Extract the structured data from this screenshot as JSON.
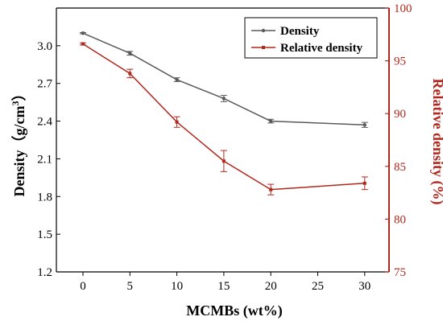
{
  "colors": {
    "density": "#5a5a5a",
    "relative": "#b0281d",
    "axis": "#000000"
  },
  "chart_data": {
    "type": "line",
    "categories": [
      "0",
      "5",
      "10",
      "15",
      "20",
      "25",
      "30"
    ],
    "xlabel": "MCMBs (wt%)",
    "ylabel_left": {
      "main": "Density",
      "unit_open": "（g/cm",
      "unit_sup": "3",
      "unit_close": "）"
    },
    "ylabel_right": "Relative density (%)",
    "y_left": {
      "min": 1.2,
      "max": 3.3,
      "ticks": [
        "1.2",
        "1.5",
        "1.8",
        "2.1",
        "2.4",
        "2.7",
        "3.0"
      ]
    },
    "y_right": {
      "min": 75,
      "max": 100,
      "ticks": [
        "75",
        "80",
        "85",
        "90",
        "95",
        "100"
      ]
    },
    "grid": false,
    "legend": "top-right",
    "series": [
      {
        "name": "Density",
        "axis": "left",
        "x": [
          0,
          5,
          10,
          15,
          20,
          30
        ],
        "values": [
          3.1,
          2.94,
          2.73,
          2.58,
          2.4,
          2.37
        ],
        "errors": [
          0.005,
          0.015,
          0.015,
          0.025,
          0.015,
          0.02
        ]
      },
      {
        "name": "Relative density",
        "axis": "right",
        "x": [
          0,
          5,
          10,
          15,
          20,
          30
        ],
        "values": [
          96.6,
          93.8,
          89.2,
          85.5,
          82.8,
          83.4
        ],
        "errors": [
          0.1,
          0.4,
          0.5,
          1.0,
          0.5,
          0.6
        ]
      }
    ]
  }
}
